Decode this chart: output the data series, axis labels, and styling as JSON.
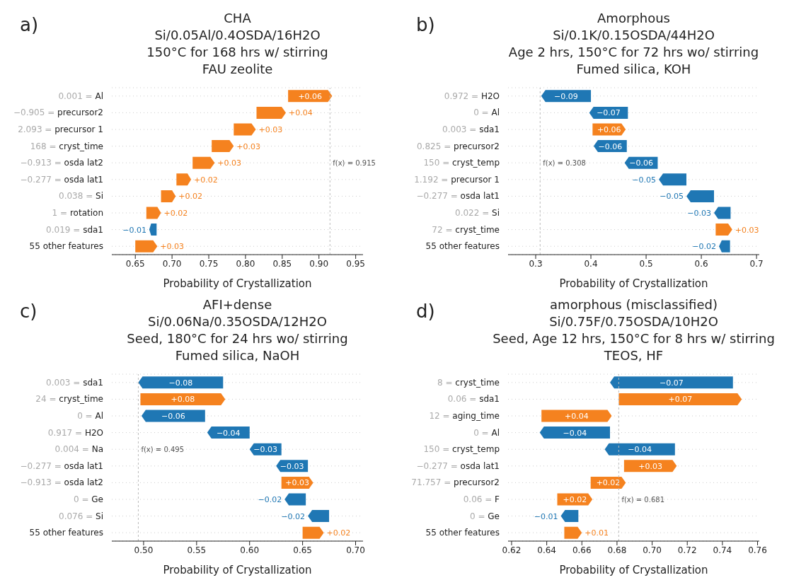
{
  "chart_data": [
    {
      "type": "bar",
      "orientation": "horizontal",
      "title": "CHA\nSi/0.05Al/0.4OSDA/16H2O\n150°C for 168 hrs w/ stirring\nFAU zeolite",
      "annotations": [
        "a)"
      ],
      "xlabel": "Probability of Crystallization",
      "grid": "y",
      "categories": [
        "0.001 = Al",
        "−0.905 = precursor2",
        "2.093 = precursor 1",
        "168 = cryst_time",
        "−0.913 = osda lat2",
        "−0.277 = osda lat1",
        "0.038 = Si",
        "1 = rotation",
        "0.019 = sda1",
        "55 other features"
      ],
      "values": [
        0.06,
        0.04,
        0.03,
        0.03,
        0.03,
        0.02,
        0.02,
        0.02,
        -0.01,
        0.03
      ],
      "base": [
        0.858,
        0.815,
        0.784,
        0.754,
        0.728,
        0.706,
        0.685,
        0.665,
        0.679,
        0.65
      ],
      "value_labels": [
        "+0.06",
        "+0.04",
        "+0.03",
        "+0.03",
        "+0.03",
        "+0.02",
        "+0.02",
        "+0.02",
        "−0.01",
        "+0.03"
      ],
      "colors": [
        "#f5821f",
        "#f5821f",
        "#f5821f",
        "#f5821f",
        "#f5821f",
        "#f5821f",
        "#f5821f",
        "#f5821f",
        "#1f77b4",
        "#f5821f"
      ],
      "xlim": [
        0.618,
        0.96
      ],
      "xticks": [
        {
          "value": 0.65,
          "label": "0.65"
        },
        {
          "value": 0.7,
          "label": "0.70"
        },
        {
          "value": 0.75,
          "label": "0.75"
        },
        {
          "value": 0.8,
          "label": "0.80"
        },
        {
          "value": 0.85,
          "label": "0.85"
        },
        {
          "value": 0.9,
          "label": "0.90"
        },
        {
          "value": 0.95,
          "label": "0.95"
        }
      ],
      "ref_lines": [
        {
          "axis": "x",
          "value": 0.915,
          "label": "f(x) = 0.915"
        }
      ]
    },
    {
      "type": "bar",
      "orientation": "horizontal",
      "title": "Amorphous\nSi/0.1K/0.15OSDA/44H2O\nAge 2 hrs, 150°C for 72 hrs wo/ stirring\nFumed silica, KOH",
      "annotations": [
        "b)"
      ],
      "xlabel": "Probability of Crystallization",
      "grid": "y",
      "categories": [
        "0.972 = H2O",
        "0 = Al",
        "0.003 = sda1",
        "0.825 = precursor2",
        "150 = cryst_temp",
        "1.192 = precursor 1",
        "−0.277 = osda lat1",
        "0.022 = Si",
        "72 = cryst_time",
        "55 other features"
      ],
      "values": [
        -0.09,
        -0.07,
        0.06,
        -0.06,
        -0.06,
        -0.05,
        -0.05,
        -0.03,
        0.03,
        -0.02
      ],
      "base": [
        0.4,
        0.467,
        0.403,
        0.465,
        0.521,
        0.573,
        0.623,
        0.653,
        0.626,
        0.652
      ],
      "value_labels": [
        "−0.09",
        "−0.07",
        "+0.06",
        "−0.06",
        "−0.06",
        "−0.05",
        "−0.05",
        "−0.03",
        "+0.03",
        "−0.02"
      ],
      "colors": [
        "#1f77b4",
        "#1f77b4",
        "#f5821f",
        "#1f77b4",
        "#1f77b4",
        "#1f77b4",
        "#1f77b4",
        "#1f77b4",
        "#f5821f",
        "#1f77b4"
      ],
      "xlim": [
        0.25,
        0.705
      ],
      "xticks": [
        0.3,
        0.4,
        0.5,
        0.6,
        0.7
      ],
      "ref_lines": [
        {
          "axis": "x",
          "value": 0.308,
          "label": "f(x) = 0.308"
        }
      ]
    },
    {
      "type": "bar",
      "orientation": "horizontal",
      "title": "AFI+dense\nSi/0.06Na/0.35OSDA/12H2O\nSeed, 180°C for 24 hrs wo/ stirring\nFumed silica, NaOH",
      "annotations": [
        "c)"
      ],
      "xlabel": "Probability of Crystallization",
      "grid": "y",
      "categories": [
        "0.003 = sda1",
        "24 = cryst_time",
        "0 = Al",
        "0.917 = H2O",
        "0.004 = Na",
        "−0.277 = osda lat1",
        "−0.913 = osda lat2",
        "0 = Ge",
        "0.076 = Si",
        "55 other features"
      ],
      "values": [
        -0.08,
        0.08,
        -0.06,
        -0.04,
        -0.03,
        -0.03,
        0.03,
        -0.02,
        -0.02,
        0.02
      ],
      "base": [
        0.575,
        0.497,
        0.558,
        0.6,
        0.63,
        0.655,
        0.63,
        0.653,
        0.675,
        0.65
      ],
      "value_labels": [
        "−0.08",
        "+0.08",
        "−0.06",
        "−0.04",
        "−0.03",
        "−0.03",
        "+0.03",
        "−0.02",
        "−0.02",
        "+0.02"
      ],
      "colors": [
        "#1f77b4",
        "#f5821f",
        "#1f77b4",
        "#1f77b4",
        "#1f77b4",
        "#1f77b4",
        "#f5821f",
        "#1f77b4",
        "#1f77b4",
        "#f5821f"
      ],
      "xlim": [
        0.47,
        0.707
      ],
      "xticks": [
        {
          "value": 0.5,
          "label": "0.50"
        },
        {
          "value": 0.55,
          "label": "0.55"
        },
        {
          "value": 0.6,
          "label": "0.60"
        },
        {
          "value": 0.65,
          "label": "0.65"
        },
        {
          "value": 0.7,
          "label": "0.70"
        }
      ],
      "ref_lines": [
        {
          "axis": "x",
          "value": 0.495,
          "label": "f(x) = 0.495"
        }
      ]
    },
    {
      "type": "bar",
      "orientation": "horizontal",
      "title": "amorphous (misclassified)\nSi/0.75F/0.75OSDA/10H2O\nSeed, Age 12 hrs, 150°C for 8 hrs w/ stirring\nTEOS, HF",
      "annotations": [
        "d)"
      ],
      "xlabel": "Probability of Crystallization",
      "grid": "y",
      "categories": [
        "8 = cryst_time",
        "0.06 = sda1",
        "12 = aging_time",
        "0 = Al",
        "150 = cryst_temp",
        "−0.277 = osda lat1",
        "71.757 = precursor2",
        "0.06 = F",
        "0 = Ge",
        "55 other features"
      ],
      "values": [
        -0.07,
        0.07,
        0.04,
        -0.04,
        -0.04,
        0.03,
        0.02,
        0.02,
        -0.01,
        0.01
      ],
      "base": [
        0.746,
        0.681,
        0.637,
        0.676,
        0.713,
        0.684,
        0.665,
        0.646,
        0.658,
        0.65
      ],
      "value_labels": [
        "−0.07",
        "+0.07",
        "+0.04",
        "−0.04",
        "−0.04",
        "+0.03",
        "+0.02",
        "+0.02",
        "−0.01",
        "+0.01"
      ],
      "colors": [
        "#1f77b4",
        "#f5821f",
        "#f5821f",
        "#1f77b4",
        "#1f77b4",
        "#f5821f",
        "#f5821f",
        "#f5821f",
        "#1f77b4",
        "#f5821f"
      ],
      "xlim": [
        0.618,
        0.761
      ],
      "xticks": [
        {
          "value": 0.62,
          "label": "0.62"
        },
        {
          "value": 0.64,
          "label": "0.64"
        },
        {
          "value": 0.66,
          "label": "0.66"
        },
        {
          "value": 0.68,
          "label": "0.68"
        },
        {
          "value": 0.7,
          "label": "0.70"
        },
        {
          "value": 0.72,
          "label": "0.72"
        },
        {
          "value": 0.74,
          "label": "0.74"
        },
        {
          "value": 0.76,
          "label": "0.76"
        }
      ],
      "ref_lines": [
        {
          "axis": "x",
          "value": 0.681,
          "label": "f(x) = 0.681"
        }
      ]
    }
  ]
}
